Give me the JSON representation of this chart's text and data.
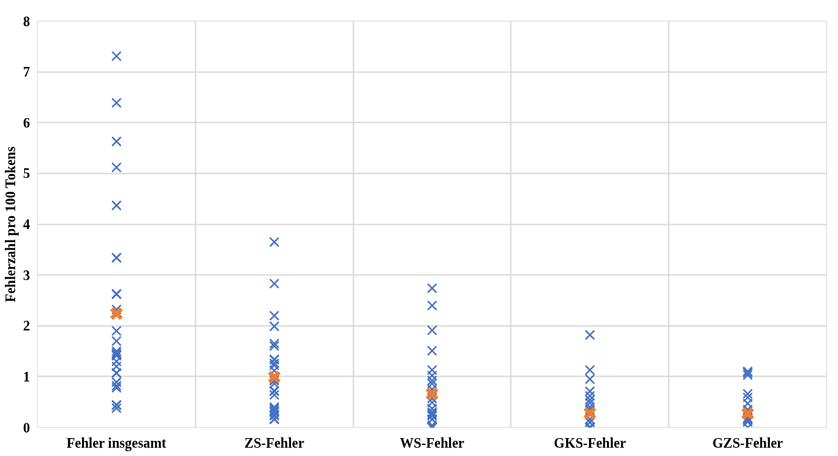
{
  "chart_data": {
    "type": "scatter",
    "ylabel": "Fehlerzahl pro 100 Tokens",
    "categories": [
      "Fehler insgesamt",
      "ZS-Fehler",
      "WS-Fehler",
      "GKS-Fehler",
      "GZS-Fehler"
    ],
    "ylim": [
      0,
      8
    ],
    "yticks": [
      0,
      1,
      2,
      3,
      4,
      5,
      6,
      7,
      8
    ],
    "grid": true,
    "marker": "cross",
    "series": [
      {
        "color": "#4472c4",
        "x": [
          "Fehler insgesamt",
          "Fehler insgesamt",
          "Fehler insgesamt",
          "Fehler insgesamt",
          "Fehler insgesamt",
          "Fehler insgesamt",
          "Fehler insgesamt",
          "Fehler insgesamt",
          "Fehler insgesamt",
          "Fehler insgesamt",
          "Fehler insgesamt",
          "Fehler insgesamt",
          "Fehler insgesamt",
          "Fehler insgesamt",
          "Fehler insgesamt",
          "Fehler insgesamt",
          "Fehler insgesamt",
          "Fehler insgesamt",
          "Fehler insgesamt",
          "Fehler insgesamt",
          "Fehler insgesamt",
          "Fehler insgesamt",
          "Fehler insgesamt",
          "Fehler insgesamt",
          "Fehler insgesamt",
          "Fehler insgesamt",
          "Fehler insgesamt",
          "Fehler insgesamt",
          "ZS-Fehler",
          "ZS-Fehler",
          "ZS-Fehler",
          "ZS-Fehler",
          "ZS-Fehler",
          "ZS-Fehler",
          "ZS-Fehler",
          "ZS-Fehler",
          "ZS-Fehler",
          "ZS-Fehler",
          "ZS-Fehler",
          "ZS-Fehler",
          "ZS-Fehler",
          "ZS-Fehler",
          "ZS-Fehler",
          "ZS-Fehler",
          "ZS-Fehler",
          "ZS-Fehler",
          "ZS-Fehler",
          "ZS-Fehler",
          "ZS-Fehler",
          "ZS-Fehler",
          "ZS-Fehler",
          "ZS-Fehler",
          "ZS-Fehler",
          "ZS-Fehler",
          "ZS-Fehler",
          "ZS-Fehler",
          "WS-Fehler",
          "WS-Fehler",
          "WS-Fehler",
          "WS-Fehler",
          "WS-Fehler",
          "WS-Fehler",
          "WS-Fehler",
          "WS-Fehler",
          "WS-Fehler",
          "WS-Fehler",
          "WS-Fehler",
          "WS-Fehler",
          "WS-Fehler",
          "WS-Fehler",
          "WS-Fehler",
          "WS-Fehler",
          "WS-Fehler",
          "WS-Fehler",
          "WS-Fehler",
          "WS-Fehler",
          "WS-Fehler",
          "WS-Fehler",
          "WS-Fehler",
          "WS-Fehler",
          "GKS-Fehler",
          "GKS-Fehler",
          "GKS-Fehler",
          "GKS-Fehler",
          "GKS-Fehler",
          "GKS-Fehler",
          "GKS-Fehler",
          "GKS-Fehler",
          "GKS-Fehler",
          "GKS-Fehler",
          "GKS-Fehler",
          "GKS-Fehler",
          "GKS-Fehler",
          "GKS-Fehler",
          "GKS-Fehler",
          "GKS-Fehler",
          "GKS-Fehler",
          "GKS-Fehler",
          "GKS-Fehler",
          "GKS-Fehler",
          "GKS-Fehler",
          "GKS-Fehler",
          "GKS-Fehler",
          "GKS-Fehler",
          "GZS-Fehler",
          "GZS-Fehler",
          "GZS-Fehler",
          "GZS-Fehler",
          "GZS-Fehler",
          "GZS-Fehler",
          "GZS-Fehler",
          "GZS-Fehler",
          "GZS-Fehler",
          "GZS-Fehler",
          "GZS-Fehler",
          "GZS-Fehler",
          "GZS-Fehler",
          "GZS-Fehler",
          "GZS-Fehler"
        ],
        "values": [
          7.31,
          6.39,
          5.63,
          5.12,
          4.37,
          3.34,
          3.34,
          2.63,
          2.62,
          2.32,
          1.9,
          1.7,
          1.5,
          1.46,
          1.43,
          1.43,
          1.41,
          1.3,
          1.2,
          1.07,
          1.07,
          0.89,
          0.78,
          0.82,
          0.44,
          0.38,
          0.44,
          0.44,
          3.65,
          2.83,
          2.2,
          1.99,
          1.65,
          1.6,
          1.33,
          1.34,
          1.26,
          1.22,
          1.12,
          0.95,
          0.86,
          0.92,
          0.72,
          0.71,
          0.64,
          0.33,
          0.4,
          0.25,
          0.23,
          0.33,
          0.3,
          0.3,
          0.37,
          0.16,
          0.16,
          0.16,
          2.74,
          2.4,
          1.91,
          1.51,
          1.13,
          1.02,
          0.92,
          0.86,
          0.75,
          0.57,
          0.49,
          0.37,
          0.3,
          0.25,
          0.16,
          0.28,
          0.23,
          0.16,
          0.04,
          0.01,
          0.01,
          0,
          0,
          0,
          1.82,
          1.13,
          0.95,
          0.71,
          0.62,
          0.48,
          0.54,
          0.33,
          0.4,
          0.35,
          0.25,
          0.16,
          0,
          0,
          0,
          0,
          0,
          0,
          0,
          0,
          0,
          0,
          0.1,
          0.1,
          1.07,
          1.1,
          1.03,
          1.09,
          0.59,
          0.66,
          0.47,
          0.35,
          0.18,
          0.18,
          0.14,
          0.16,
          0.11,
          0.11,
          0
        ]
      },
      {
        "color": "#ed7d31",
        "x": [
          "Fehler insgesamt",
          "ZS-Fehler",
          "WS-Fehler",
          "GKS-Fehler",
          "GZS-Fehler"
        ],
        "values": [
          2.24,
          0.99,
          0.66,
          0.28,
          0.27
        ]
      }
    ]
  }
}
